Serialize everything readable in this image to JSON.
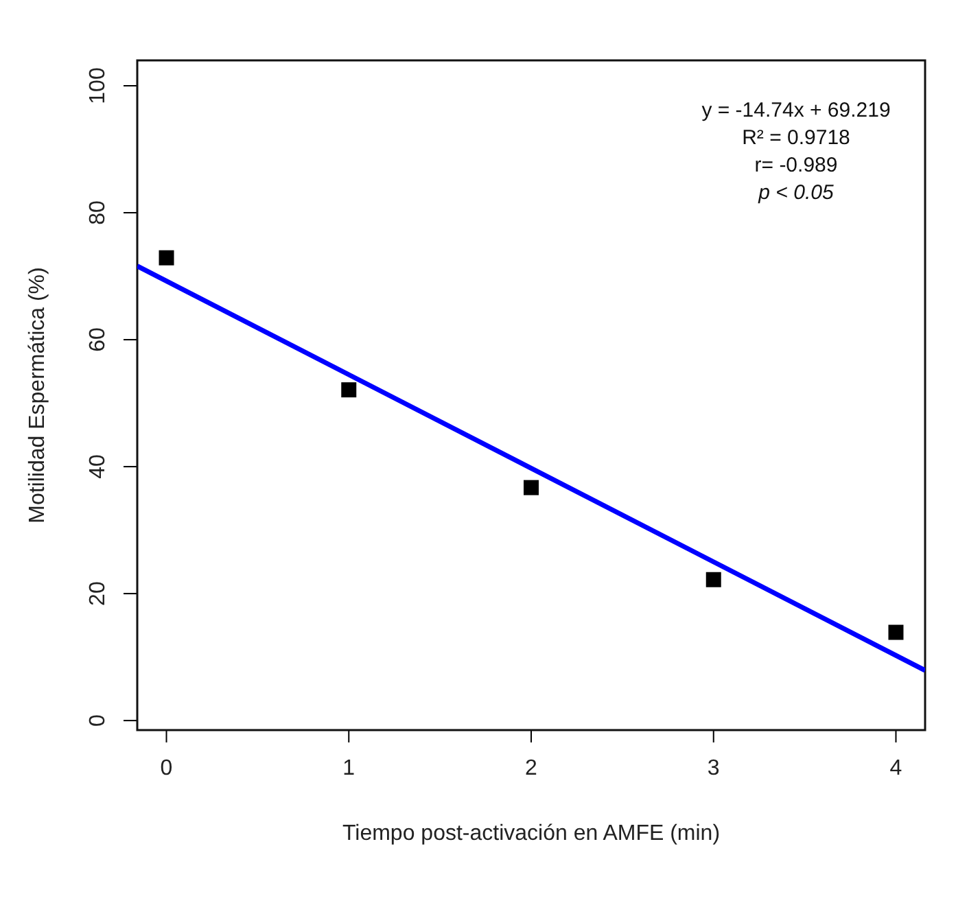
{
  "chart_data": {
    "type": "scatter",
    "xlabel": "Tiempo post-activación en AMFE (min)",
    "ylabel": "Motilidad Espermática (%)",
    "xlim": [
      -0.16,
      4.16
    ],
    "ylim": [
      -1.5,
      104
    ],
    "xticks": [
      0,
      1,
      2,
      3,
      4
    ],
    "yticks": [
      0,
      20,
      40,
      60,
      80,
      100
    ],
    "grid": false,
    "series": [
      {
        "color": "#000000",
        "marker": "square",
        "x": [
          0,
          1,
          2,
          3,
          4
        ],
        "values": [
          72.9,
          52.1,
          36.7,
          22.2,
          13.9
        ]
      },
      {
        "type": "line",
        "color": "#0000ff",
        "line_style": "solid",
        "x": [
          -0.16,
          4.16
        ],
        "values": [
          71.6,
          7.9
        ]
      }
    ],
    "annotations": [
      "y = -14.74x + 69.219",
      "R² = 0.9718",
      "r= -0.989",
      "p < 0.05"
    ]
  }
}
